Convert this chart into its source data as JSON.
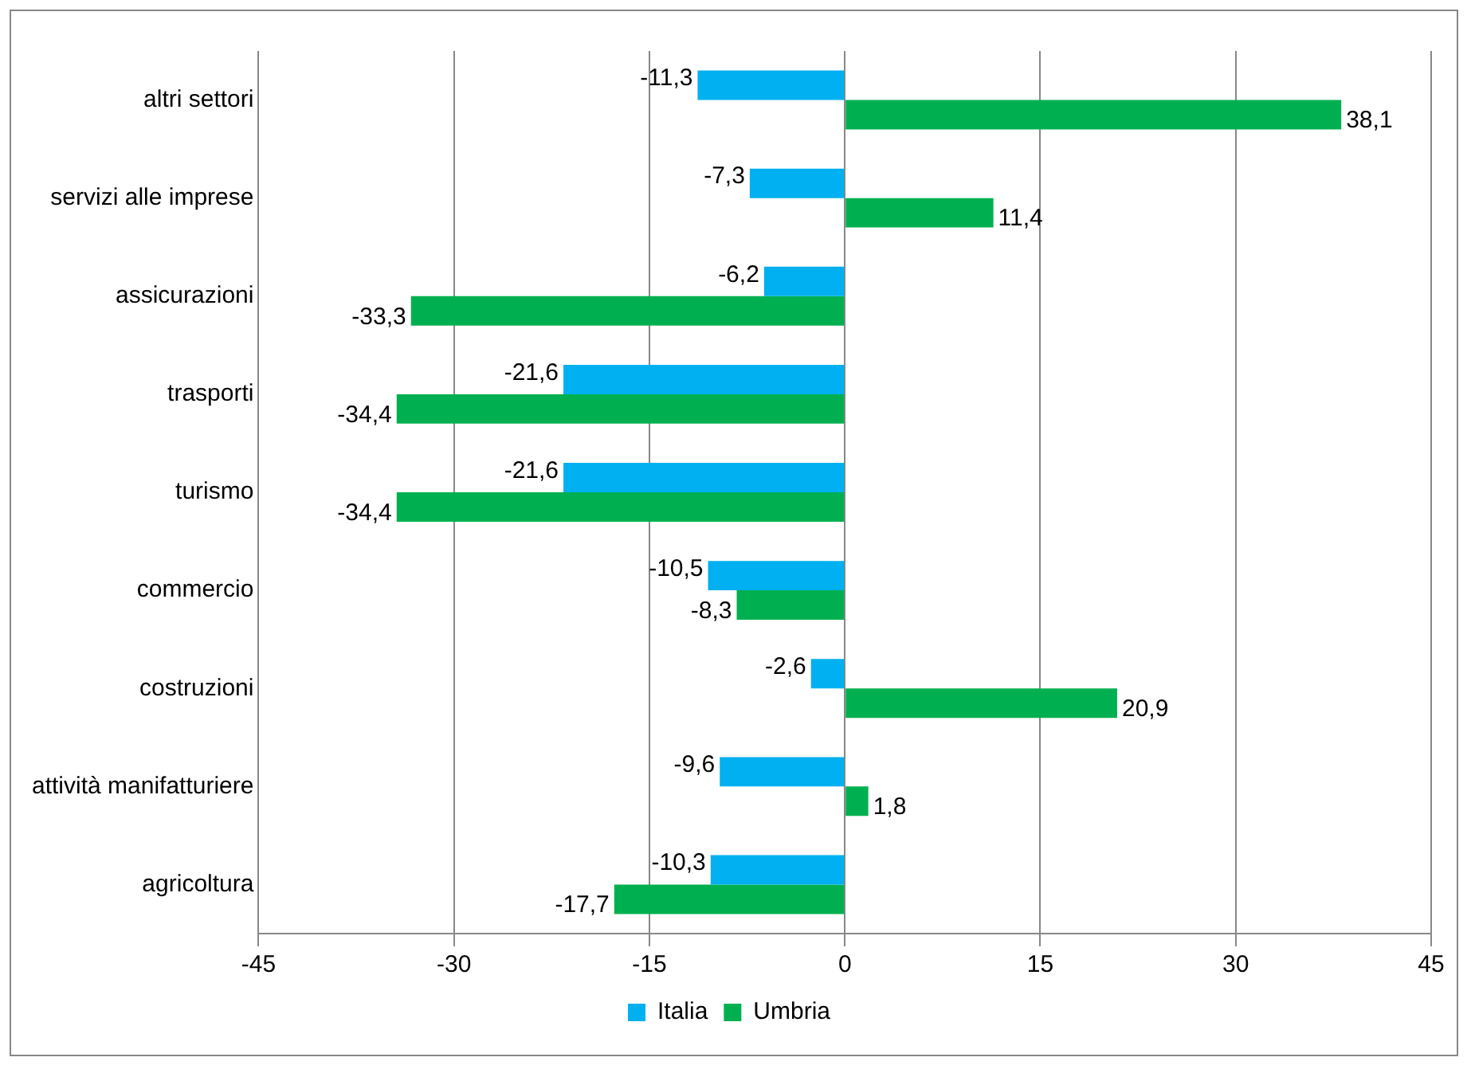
{
  "chart_data": {
    "type": "bar",
    "orientation": "horizontal",
    "categories": [
      "altri settori",
      "servizi alle imprese",
      "assicurazioni",
      "trasporti",
      "turismo",
      "commercio",
      "costruzioni",
      "attività manifatturiere",
      "agricoltura"
    ],
    "series": [
      {
        "name": "Italia",
        "color": "#00b0f0",
        "values": [
          -11.3,
          -7.3,
          -6.2,
          -21.6,
          -21.6,
          -10.5,
          -2.6,
          -9.6,
          -10.3
        ],
        "value_labels": [
          "-11,3",
          "-7,3",
          "-6,2",
          "-21,6",
          "-21,6",
          "-10,5",
          "-2,6",
          "-9,6",
          "-10,3"
        ]
      },
      {
        "name": "Umbria",
        "color": "#00b050",
        "values": [
          38.1,
          11.4,
          -33.3,
          -34.4,
          -34.4,
          -8.3,
          20.9,
          1.8,
          -17.7
        ],
        "value_labels": [
          "38,1",
          "11,4",
          "-33,3",
          "-34,4",
          "-34,4",
          "-8,3",
          "20,9",
          "1,8",
          "-17,7"
        ]
      }
    ],
    "xlim": [
      -45,
      45
    ],
    "xticks": [
      -45,
      -30,
      -15,
      0,
      15,
      30,
      45
    ],
    "grid": "x",
    "legend": "bottom"
  }
}
